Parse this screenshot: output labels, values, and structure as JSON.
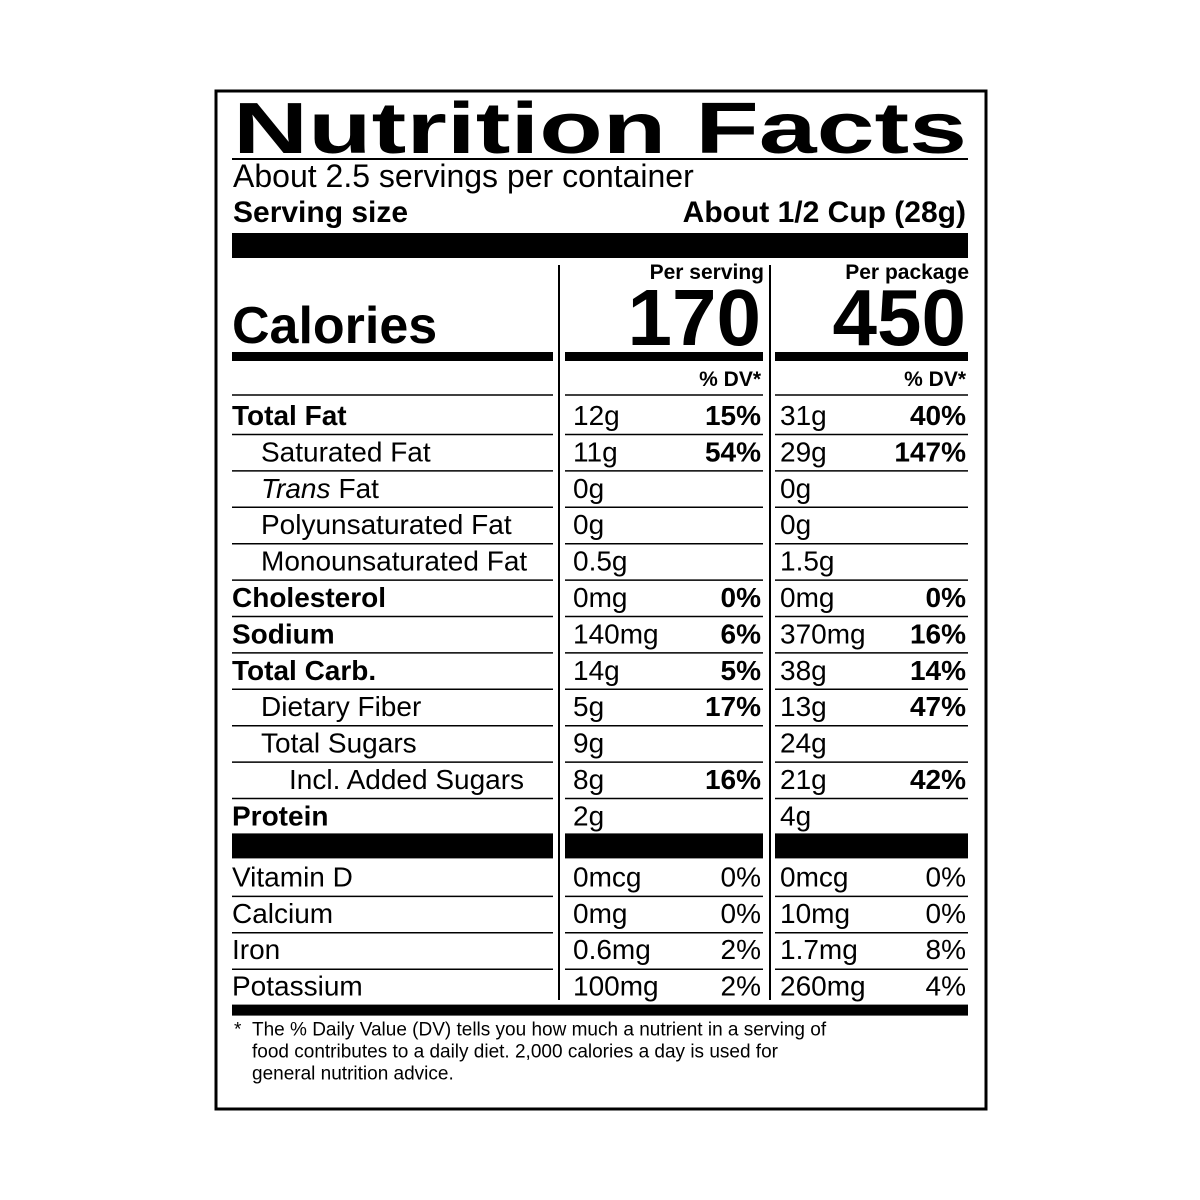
{
  "title": "Nutrition Facts",
  "servings": "About 2.5 servings per container",
  "serving_size": {
    "label": "Serving size",
    "value": "About 1/2 Cup (28g)"
  },
  "calories": {
    "label": "Calories",
    "columns": [
      {
        "header": "Per serving",
        "value": "170"
      },
      {
        "header": "Per package",
        "value": "450"
      }
    ]
  },
  "dv_header": [
    "% DV*",
    "% DV*"
  ],
  "nutrients": [
    {
      "name": "Total Fat",
      "values": [
        {
          "amount": "12g",
          "dv": "15%"
        },
        {
          "amount": "31g",
          "dv": "40%"
        }
      ],
      "sub": [
        {
          "name": "Saturated Fat",
          "values": [
            {
              "amount": "11g",
              "dv": "54%"
            },
            {
              "amount": "29g",
              "dv": "147%"
            }
          ]
        },
        {
          "name_italic": "Trans",
          "name": "Fat",
          "values": [
            {
              "amount": "0g"
            },
            {
              "amount": "0g"
            }
          ]
        },
        {
          "name": "Polyunsaturated Fat",
          "values": [
            {
              "amount": "0g"
            },
            {
              "amount": "0g"
            }
          ]
        },
        {
          "name": "Monounsaturated Fat",
          "values": [
            {
              "amount": "0.5g"
            },
            {
              "amount": "1.5g"
            }
          ]
        }
      ]
    },
    {
      "name": "Cholesterol",
      "values": [
        {
          "amount": "0mg",
          "dv": "0%"
        },
        {
          "amount": "0mg",
          "dv": "0%"
        }
      ]
    },
    {
      "name": "Sodium",
      "values": [
        {
          "amount": "140mg",
          "dv": "6%"
        },
        {
          "amount": "370mg",
          "dv": "16%"
        }
      ]
    },
    {
      "name": "Total Carb.",
      "values": [
        {
          "amount": "14g",
          "dv": "5%"
        },
        {
          "amount": "38g",
          "dv": "14%"
        }
      ],
      "sub": [
        {
          "name": "Dietary Fiber",
          "values": [
            {
              "amount": "5g",
              "dv": "17%"
            },
            {
              "amount": "13g",
              "dv": "47%"
            }
          ]
        },
        {
          "name": "Total Sugars",
          "values": [
            {
              "amount": "9g"
            },
            {
              "amount": "24g"
            }
          ],
          "sub": [
            {
              "name": "Incl. Added Sugars",
              "values": [
                {
                  "amount": "8g",
                  "dv": "16%"
                },
                {
                  "amount": "21g",
                  "dv": "42%"
                }
              ]
            }
          ]
        }
      ]
    },
    {
      "name": "Protein",
      "values": [
        {
          "amount": "2g"
        },
        {
          "amount": "4g"
        }
      ]
    }
  ],
  "vitamins": [
    {
      "name": "Vitamin D",
      "values": [
        {
          "amount": "0mcg",
          "dv": "0%"
        },
        {
          "amount": "0mcg",
          "dv": "0%"
        }
      ]
    },
    {
      "name": "Calcium",
      "values": [
        {
          "amount": "0mg",
          "dv": "0%"
        },
        {
          "amount": "10mg",
          "dv": "0%"
        }
      ]
    },
    {
      "name": "Iron",
      "values": [
        {
          "amount": "0.6mg",
          "dv": "2%"
        },
        {
          "amount": "1.7mg",
          "dv": "8%"
        }
      ]
    },
    {
      "name": "Potassium",
      "values": [
        {
          "amount": "100mg",
          "dv": "2%"
        },
        {
          "amount": "260mg",
          "dv": "4%"
        }
      ]
    }
  ],
  "footnote": {
    "mark": "*",
    "lines": [
      "The % Daily Value (DV) tells you how much a nutrient in a serving of",
      "food contributes to a daily diet. 2,000 calories a day is used for",
      "general nutrition advice."
    ]
  }
}
